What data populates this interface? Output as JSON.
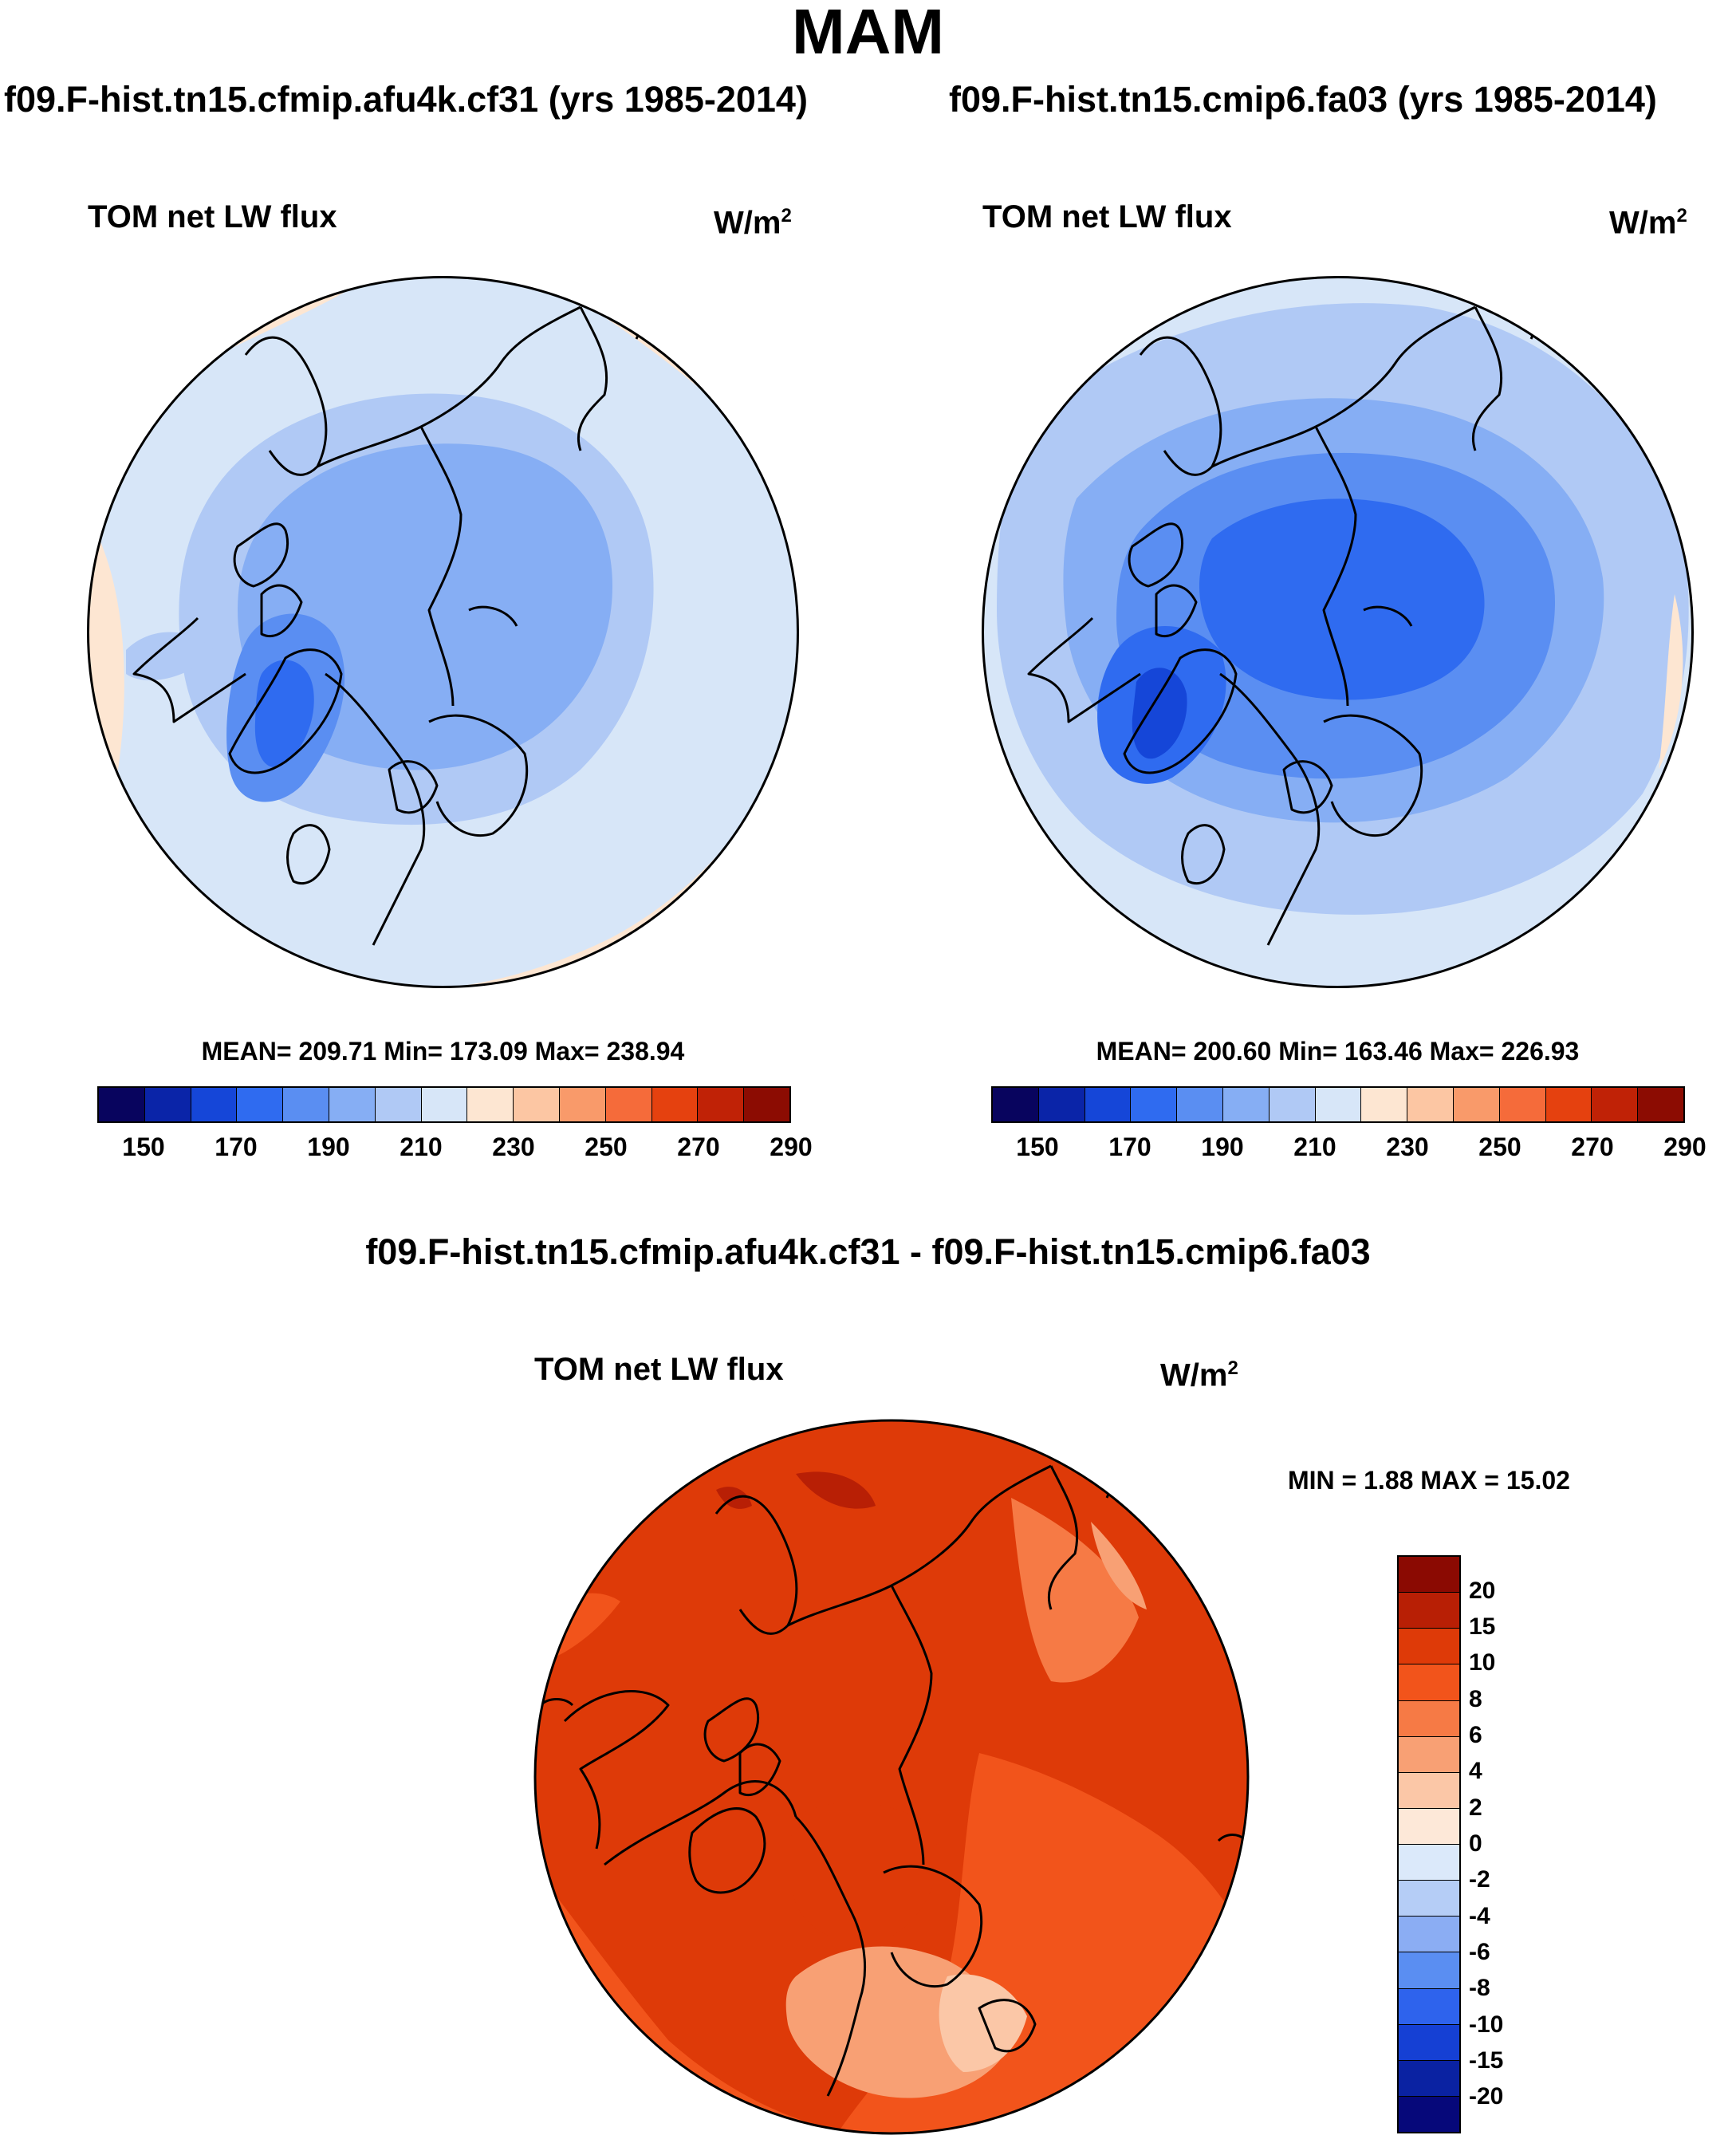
{
  "main_title": "MAM",
  "panels": [
    {
      "case": "f09.F-hist.tn15.cfmip.afu4k.cf31 (yrs 1985-2014)",
      "variable": "TOM net LW flux",
      "units": "W/m",
      "units_exp": "2",
      "stats": "MEAN= 209.71  Min= 173.09  Max= 238.94",
      "colorbar_ticks": [
        "150",
        "170",
        "190",
        "210",
        "230",
        "250",
        "270",
        "290"
      ]
    },
    {
      "case": "f09.F-hist.tn15.cmip6.fa03 (yrs 1985-2014)",
      "variable": "TOM net LW flux",
      "units": "W/m",
      "units_exp": "2",
      "stats": "MEAN= 200.60  Min= 163.46  Max= 226.93",
      "colorbar_ticks": [
        "150",
        "170",
        "190",
        "210",
        "230",
        "250",
        "270",
        "290"
      ]
    }
  ],
  "diff": {
    "title": "f09.F-hist.tn15.cfmip.afu4k.cf31 - f09.F-hist.tn15.cmip6.fa03",
    "variable": "TOM net LW flux",
    "units": "W/m",
    "units_exp": "2",
    "stats": "MIN =   1.88 MAX =  15.02",
    "colorbar_ticks": [
      "20",
      "15",
      "10",
      "8",
      "6",
      "4",
      "2",
      "0",
      "-2",
      "-4",
      "-6",
      "-8",
      "-10",
      "-15",
      "-20"
    ]
  },
  "colors": {
    "abs_palette": [
      "#08045e",
      "#0a24a8",
      "#1546d8",
      "#2f6bf0",
      "#5a8ef2",
      "#86aef4",
      "#b0c9f5",
      "#d7e6f8",
      "#fde6d2",
      "#fcc6a3",
      "#f99a6a",
      "#f56b3a",
      "#e5410f",
      "#c02206",
      "#8c0c02"
    ],
    "diff_palette": [
      "#8b0a02",
      "#b81f05",
      "#de3a08",
      "#f2541b",
      "#f67a45",
      "#f8a074",
      "#fbc7a7",
      "#fde8d8",
      "#dbe9fa",
      "#b5cdf6",
      "#8badf3",
      "#5a8ef2",
      "#2e63ed",
      "#1540d4",
      "#0a22a2",
      "#06087a"
    ]
  }
}
